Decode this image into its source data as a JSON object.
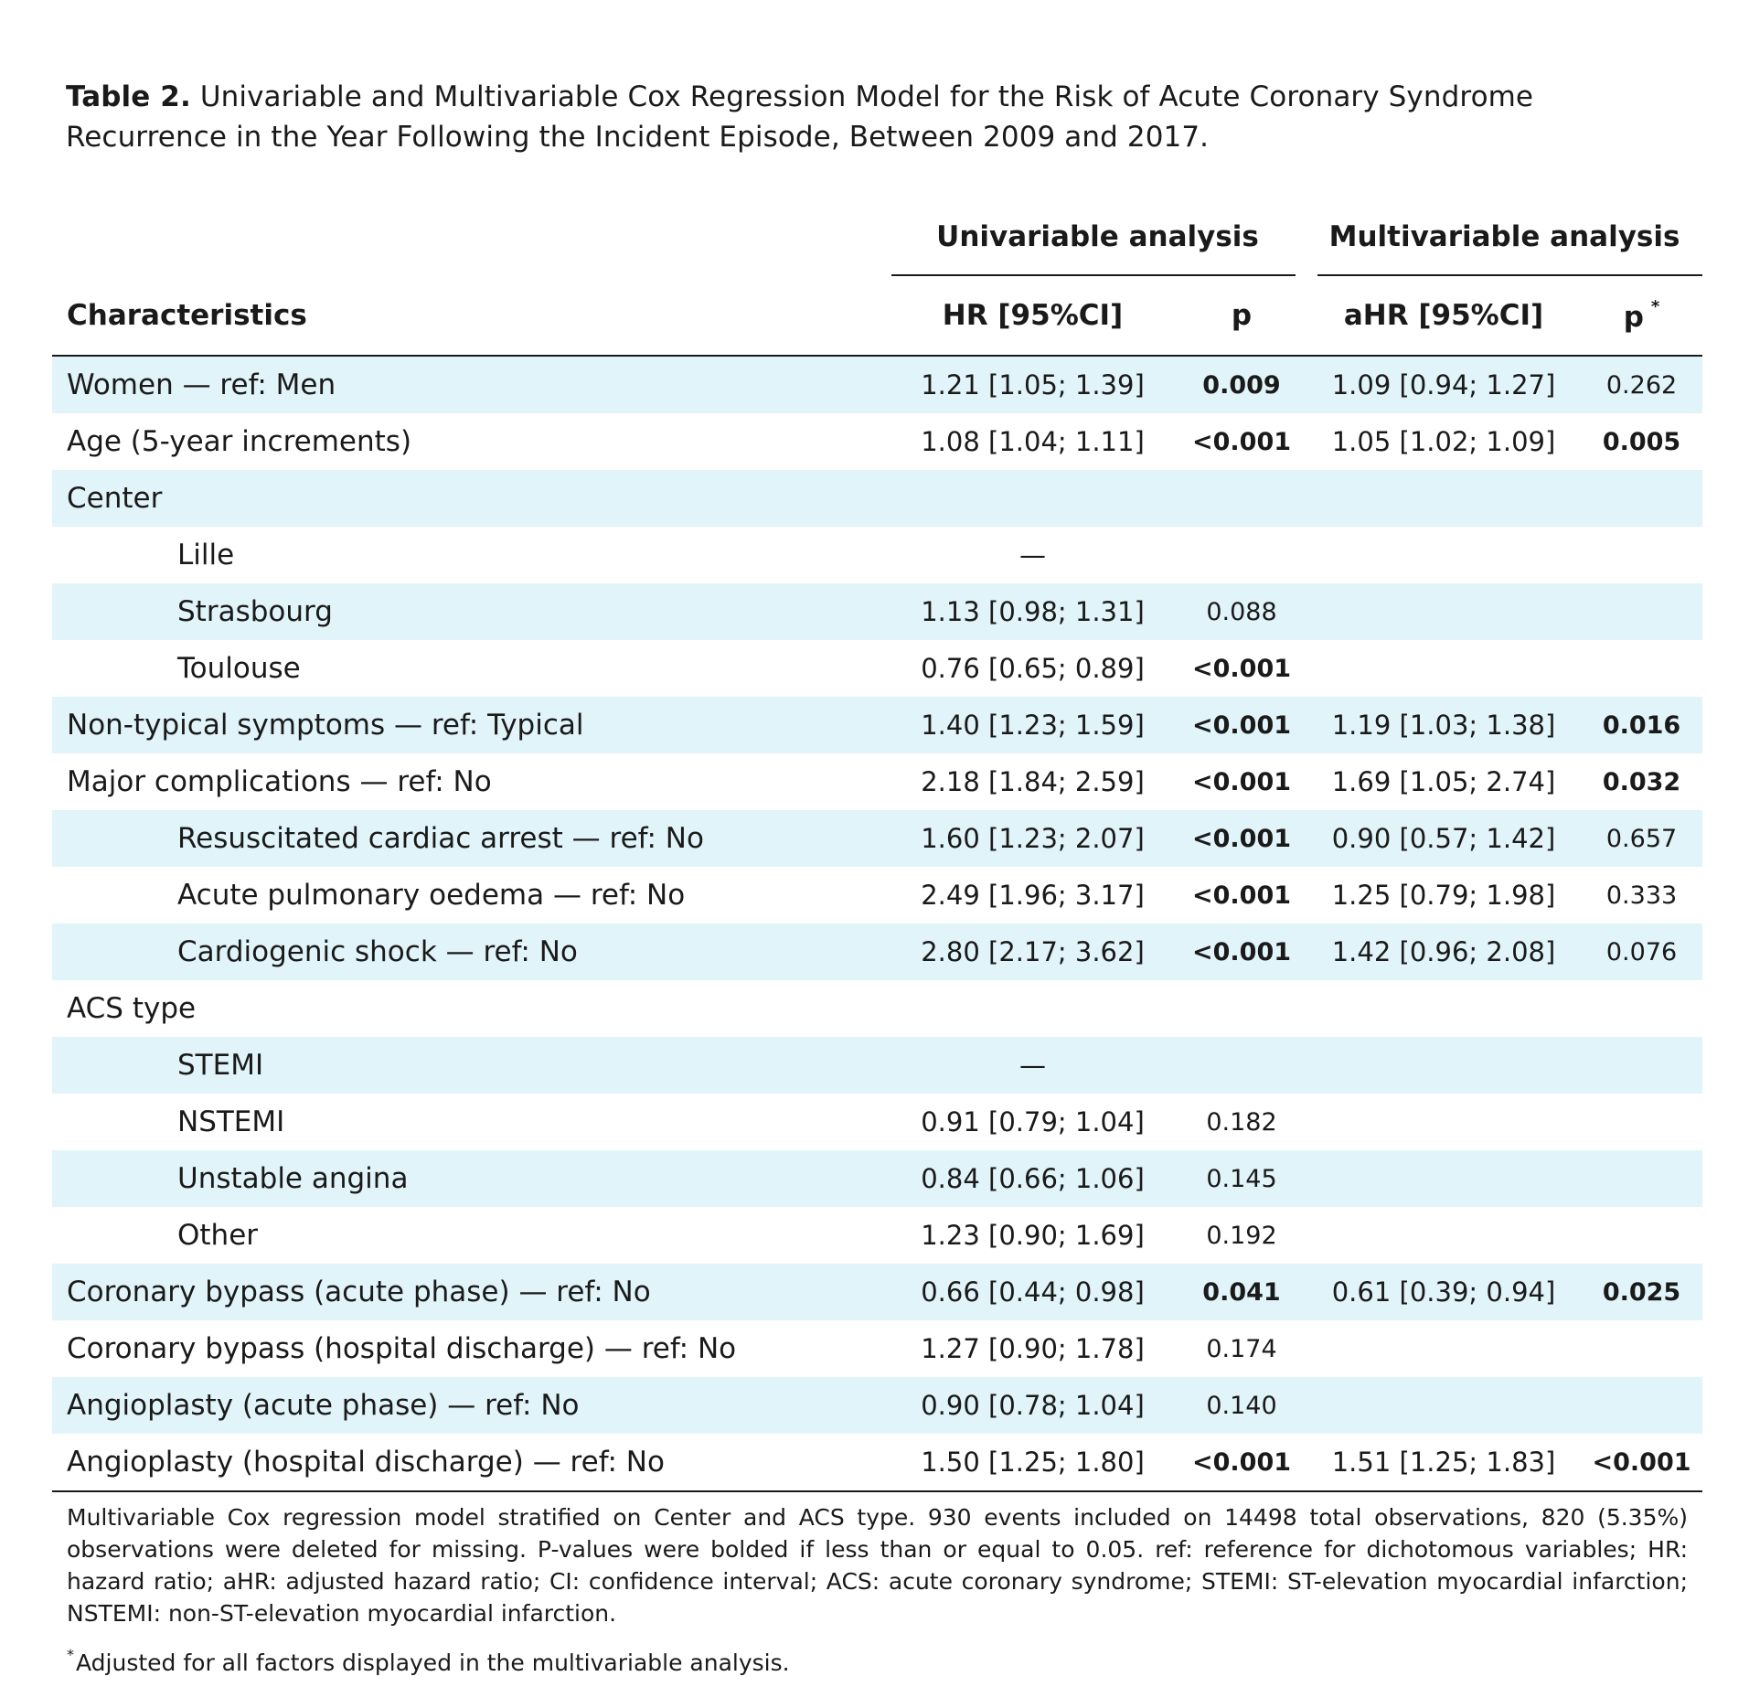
{
  "caption": {
    "label": "Table 2.",
    "text": " Univariable and Multivariable Cox Regression Model for the Risk of Acute Coronary Syndrome Recurrence in the Year Following the Incident Episode, Between 2009 and 2017."
  },
  "groups": {
    "univariable": "Univariable analysis",
    "multivariable": "Multivariable analysis"
  },
  "headers": {
    "characteristics": "Characteristics",
    "hr": "HR [95%CI]",
    "p": "p",
    "ahr": "aHR [95%CI]",
    "p2": "p",
    "p2_mark": "*"
  },
  "rows": [
    {
      "label": "Women — ref: Men",
      "hr": "1.21 [1.05; 1.39]",
      "p": "0.009",
      "ahr": "1.09 [0.94; 1.27]",
      "p2": "0.262"
    },
    {
      "label": "Age (5-year increments)",
      "hr": "1.08 [1.04; 1.11]",
      "p": "<0.001",
      "ahr": "1.05 [1.02; 1.09]",
      "p2": "0.005"
    },
    {
      "label": "Center",
      "hr": "",
      "p": "",
      "ahr": "",
      "p2": ""
    },
    {
      "label": "Lille",
      "hr": "—",
      "p": "",
      "ahr": "",
      "p2": ""
    },
    {
      "label": "Strasbourg",
      "hr": "1.13 [0.98; 1.31]",
      "p": "0.088",
      "ahr": "",
      "p2": ""
    },
    {
      "label": "Toulouse",
      "hr": "0.76 [0.65; 0.89]",
      "p": "<0.001",
      "ahr": "",
      "p2": ""
    },
    {
      "label": "Non-typical symptoms — ref: Typical",
      "hr": "1.40 [1.23; 1.59]",
      "p": "<0.001",
      "ahr": "1.19 [1.03; 1.38]",
      "p2": "0.016"
    },
    {
      "label": "Major complications — ref: No",
      "hr": "2.18 [1.84; 2.59]",
      "p": "<0.001",
      "ahr": "1.69 [1.05; 2.74]",
      "p2": "0.032"
    },
    {
      "label": "Resuscitated cardiac arrest — ref: No",
      "hr": "1.60 [1.23; 2.07]",
      "p": "<0.001",
      "ahr": "0.90 [0.57; 1.42]",
      "p2": "0.657"
    },
    {
      "label": "Acute pulmonary oedema — ref: No",
      "hr": "2.49 [1.96; 3.17]",
      "p": "<0.001",
      "ahr": "1.25 [0.79; 1.98]",
      "p2": "0.333"
    },
    {
      "label": "Cardiogenic shock — ref: No",
      "hr": "2.80 [2.17; 3.62]",
      "p": "<0.001",
      "ahr": "1.42 [0.96; 2.08]",
      "p2": "0.076"
    },
    {
      "label": "ACS type",
      "hr": "",
      "p": "",
      "ahr": "",
      "p2": ""
    },
    {
      "label": "STEMI",
      "hr": "—",
      "p": "",
      "ahr": "",
      "p2": ""
    },
    {
      "label": "NSTEMI",
      "hr": "0.91 [0.79; 1.04]",
      "p": "0.182",
      "ahr": "",
      "p2": ""
    },
    {
      "label": "Unstable angina",
      "hr": "0.84 [0.66; 1.06]",
      "p": "0.145",
      "ahr": "",
      "p2": ""
    },
    {
      "label": "Other",
      "hr": "1.23 [0.90; 1.69]",
      "p": "0.192",
      "ahr": "",
      "p2": ""
    },
    {
      "label": "Coronary bypass (acute phase) — ref: No",
      "hr": "0.66 [0.44; 0.98]",
      "p": "0.041",
      "ahr": "0.61 [0.39; 0.94]",
      "p2": "0.025"
    },
    {
      "label": "Coronary bypass (hospital discharge) — ref: No",
      "hr": "1.27 [0.90; 1.78]",
      "p": "0.174",
      "ahr": "",
      "p2": ""
    },
    {
      "label": "Angioplasty (acute phase) — ref: No",
      "hr": "0.90 [0.78; 1.04]",
      "p": "0.140",
      "ahr": "",
      "p2": ""
    },
    {
      "label": "Angioplasty (hospital discharge) — ref: No",
      "hr": "1.50 [1.25; 1.80]",
      "p": "<0.001",
      "ahr": "1.51 [1.25; 1.83]",
      "p2": "<0.001"
    }
  ],
  "footnote": "Multivariable Cox regression model stratified on Center and ACS type. 930 events included on 14498 total observations, 820 (5.35%) observations were deleted for missing. P-values were bolded if less than or equal to 0.05. ref: reference for dichotomous variables; HR: hazard ratio; aHR: adjusted hazard ratio; CI: confidence interval; ACS: acute coronary syndrome; STEMI: ST-elevation myocardial infarction; NSTEMI: non-ST-elevation myocardial infarction.",
  "footnote2": {
    "mark": "*",
    "text": "Adjusted for all factors displayed in the multivariable analysis."
  }
}
